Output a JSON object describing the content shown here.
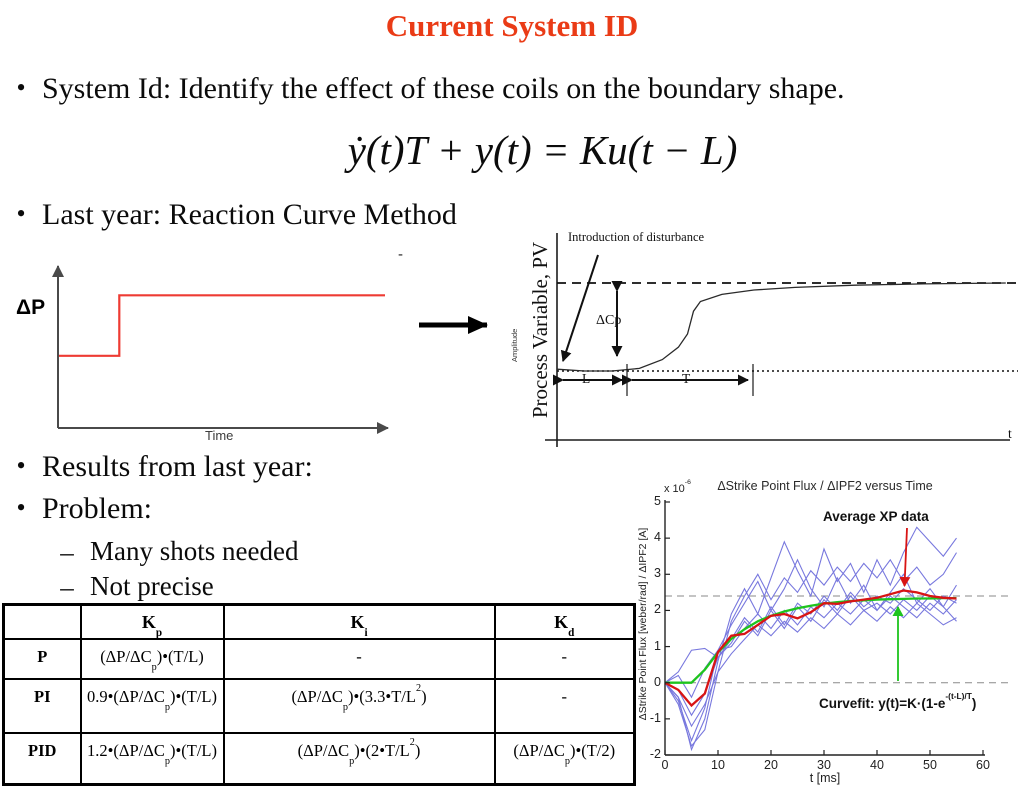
{
  "slide": {
    "title": "Current System ID",
    "title_color": "#ea3b16"
  },
  "bullets": {
    "bullet_char": "•",
    "dash_char": "–",
    "b1": "System Id: Identify the effect of these coils on the boundary shape.",
    "b2": "Last year: Reaction Curve Method",
    "b3": "Results from last year:",
    "b4": "Problem:",
    "sub1": "Many shots needed",
    "sub2": "Not precise"
  },
  "equation": {
    "text": "ẏ(t)T + y(t) = Ku(t − L)"
  },
  "stray_dash": "-",
  "chart_data": {
    "step": {
      "type": "line",
      "ylabel": "ΔP",
      "xlabel": "Time",
      "line_color": "#ee3b33",
      "note": "schematic step input, unlabeled axes, values as axis fractions",
      "series": {
        "x": [
          0,
          0.185,
          0.185,
          1
        ],
        "y": [
          0.43,
          0.43,
          0.79,
          0.79
        ]
      }
    },
    "reaction": {
      "type": "line",
      "ylabel": "Process Variable, PV",
      "ylabel_small": "Amplitude",
      "xlabel": "t",
      "note": "schematic first-order-plus-dead-time reaction curve, values as axis fractions between baseline (dotted) and final value (dashed)",
      "annotations": {
        "disturbance": "Introduction of disturbance",
        "dcp": "ΔCp",
        "L": "L",
        "T": "T"
      },
      "curve": {
        "x": [
          0,
          0.06,
          0.12,
          0.18,
          0.23,
          0.265,
          0.285,
          0.298,
          0.313,
          0.36,
          0.43,
          0.52,
          0.65,
          0.8,
          0.98
        ],
        "y": [
          0.02,
          0,
          0,
          0.03,
          0.13,
          0.27,
          0.42,
          0.68,
          0.79,
          0.87,
          0.92,
          0.95,
          0.975,
          0.99,
          1.0
        ]
      }
    },
    "strike": {
      "type": "line",
      "title": "ΔStrike Point Flux / ΔIPF2 versus Time",
      "scale_label": "x 10^{-6}",
      "xlabel": "t [ms]",
      "ylabel": "ΔStrike Point Flux [weber/rad] / ΔIPF2 [A]",
      "xlim": [
        0,
        60
      ],
      "ylim": [
        -2,
        5
      ],
      "xticks": [
        0,
        10,
        20,
        30,
        40,
        50,
        60
      ],
      "yticks": [
        -2,
        -1,
        0,
        1,
        2,
        3,
        4,
        5
      ],
      "dashed_levels": [
        0,
        2.4
      ],
      "colors": {
        "shots": "#7878de",
        "average": "#d81414",
        "fit": "#1ec41e"
      },
      "annotations": {
        "average_label": "Average XP data",
        "curvefit_label": "Curvefit: y(t)=K·(1-e^{-(t-L)/T})"
      },
      "t": [
        0,
        2.5,
        5,
        7.5,
        10,
        12.5,
        15,
        17.5,
        20,
        22.5,
        25,
        27.5,
        30,
        32.5,
        35,
        37.5,
        40,
        42.5,
        45,
        47.5,
        50,
        52.5,
        55
      ],
      "shots": [
        [
          0,
          -0.4,
          -1.85,
          -1.0,
          0.6,
          1.9,
          2.6,
          1.9,
          2.9,
          3.9,
          3.1,
          2.4,
          3.7,
          2.8,
          3.3,
          2.5,
          3.4,
          2.7,
          3.6,
          4.3,
          3.9,
          3.5,
          4.0
        ],
        [
          0,
          -0.5,
          -1.6,
          -0.7,
          0.9,
          1.6,
          2.2,
          2.8,
          2.0,
          2.6,
          3.4,
          2.6,
          2.1,
          2.9,
          2.2,
          2.7,
          2.0,
          2.5,
          3.0,
          2.2,
          2.6,
          2.1,
          2.7
        ],
        [
          0,
          -0.2,
          -0.9,
          -0.3,
          0.7,
          1.2,
          1.8,
          1.4,
          2.1,
          1.6,
          2.2,
          1.9,
          2.4,
          2.0,
          2.5,
          2.1,
          2.4,
          2.2,
          2.6,
          2.3,
          2.0,
          2.4,
          2.2
        ],
        [
          0,
          0.2,
          -0.4,
          0.4,
          0.9,
          1.0,
          1.5,
          1.9,
          1.5,
          2.0,
          1.6,
          2.1,
          1.8,
          2.2,
          1.9,
          2.3,
          2.0,
          2.4,
          2.1,
          1.8,
          2.2,
          1.9,
          2.3
        ],
        [
          0,
          -0.4,
          -1.2,
          -0.6,
          0.3,
          0.8,
          1.2,
          1.6,
          1.3,
          1.7,
          1.4,
          1.8,
          1.5,
          1.9,
          1.6,
          2.0,
          1.7,
          2.1,
          1.8,
          2.2,
          1.9,
          1.6,
          1.8
        ],
        [
          0,
          0.3,
          0.9,
          0.95,
          0.7,
          1.1,
          1.7,
          1.3,
          2.0,
          1.5,
          2.1,
          1.7,
          2.3,
          1.9,
          2.4,
          2.0,
          2.2,
          1.9,
          2.3,
          2.0,
          2.4,
          2.1,
          1.7
        ],
        [
          0,
          -0.6,
          -1.75,
          -1.3,
          0.3,
          1.7,
          2.4,
          3.0,
          2.3,
          2.9,
          2.5,
          3.1,
          2.7,
          3.2,
          2.8,
          3.3,
          2.9,
          3.4,
          2.8,
          3.2,
          2.7,
          3.0,
          3.6
        ]
      ],
      "average": [
        0,
        -0.2,
        -0.63,
        -0.3,
        0.85,
        1.3,
        1.35,
        1.6,
        1.85,
        1.9,
        1.78,
        1.95,
        2.2,
        2.18,
        2.25,
        2.3,
        2.35,
        2.45,
        2.55,
        2.5,
        2.4,
        2.35,
        2.33
      ],
      "fit": [
        0,
        0,
        0,
        0.36,
        0.84,
        1.21,
        1.48,
        1.7,
        1.85,
        1.97,
        2.06,
        2.13,
        2.19,
        2.23,
        2.26,
        2.28,
        2.3,
        2.31,
        2.32,
        2.33,
        2.33,
        2.34,
        2.34
      ]
    }
  },
  "table": {
    "headers": [
      "",
      "K_{p}",
      "K_{i}",
      "K_{d}"
    ],
    "rows": [
      {
        "label": "P",
        "cells": [
          "(ΔP/ΔC_{p})•(T/L)",
          "-",
          "-"
        ]
      },
      {
        "label": "PI",
        "cells": [
          "0.9•(ΔP/ΔC_{p})•(T/L)",
          "(ΔP/ΔC_{p})•(3.3•T/L^{2})",
          "-"
        ]
      },
      {
        "label": "PID",
        "cells": [
          "1.2•(ΔP/ΔC_{p})•(T/L)",
          "(ΔP/ΔC_{p})•(2•T/L^{2})",
          "(ΔP/ΔC_{p})•(T/2)"
        ]
      }
    ]
  }
}
